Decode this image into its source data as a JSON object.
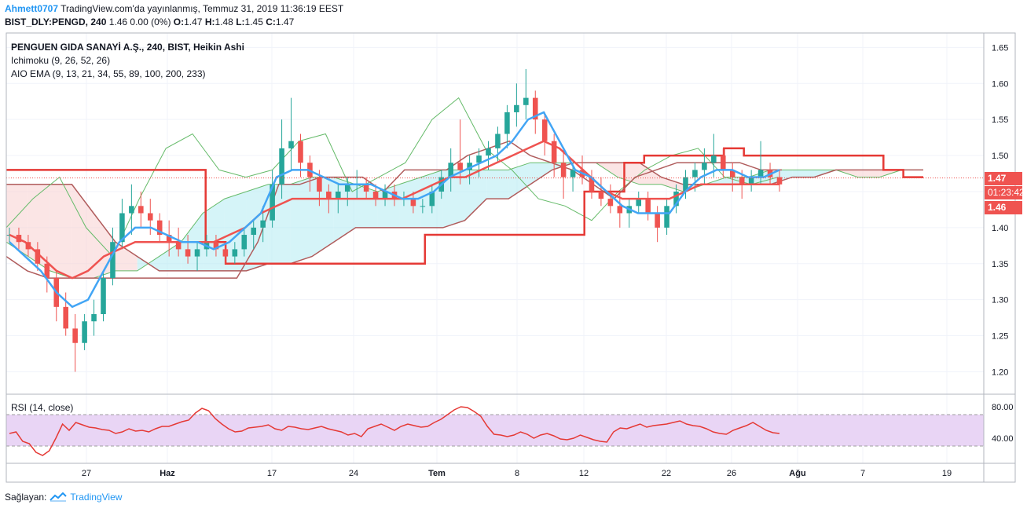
{
  "header": {
    "user": "Ahmett0707",
    "published": "TradingView.com'da yayınlanmış, Temmuz 31, 2019 11:36:19 EEST",
    "symbol": "BIST_DLY:PENGD, 240",
    "change": "1.46 0.00 (0%)",
    "o_label": "O:",
    "o_value": "1.47",
    "h_label": "H:",
    "h_value": "1.48",
    "l_label": "L:",
    "l_value": "1.45",
    "c_label": "C:",
    "c_value": "1.47"
  },
  "legend": {
    "title": "PENGUEN GIDA SANAYİ A.Ş., 240, BIST, Heikin Ashi",
    "ichimoku": "Ichimoku (9, 26, 52, 26)",
    "ema": "AIO EMA (9, 13, 21, 34, 55, 89, 100, 200, 233)",
    "rsi": "RSI (14, close)"
  },
  "price_tags": {
    "last": "1.47",
    "countdown": "01:23:42",
    "close": "1.46"
  },
  "footer": {
    "prefix": "Sağlayan:",
    "brand": "TradingView"
  },
  "colors": {
    "up": "#26a69a",
    "down": "#ef5350",
    "ema_fast": "#42a5f5",
    "ema_slow": "#ef5350",
    "kijun": "#e53935",
    "cloud_bull": "#b2ebf2",
    "cloud_bear": "#f8cfcf",
    "rsi_line": "#e53935",
    "rsi_band": "#e9d5f5",
    "grid": "#f0f3fa"
  },
  "chart_data": {
    "type": "candlestick",
    "ylim": [
      1.17,
      1.67
    ],
    "yticks": [
      1.2,
      1.25,
      1.3,
      1.35,
      1.4,
      1.45,
      1.5,
      1.55,
      1.6,
      1.65
    ],
    "ytick_labels": [
      "1.20",
      "1.25",
      "1.30",
      "1.35",
      "1.40",
      "1.45",
      "1.50",
      "1.55",
      "1.60",
      "1.65"
    ],
    "xticks": [
      "27",
      "Haz",
      "17",
      "24",
      "Tem",
      "8",
      "12",
      "22",
      "26",
      "Ağu",
      "7",
      "19"
    ],
    "rsi": {
      "ylim": [
        10,
        95
      ],
      "yticks": [
        40,
        80
      ],
      "ytick_labels": [
        "40.00",
        "80.00"
      ],
      "band": [
        30,
        70
      ],
      "values": [
        46,
        48,
        36,
        33,
        22,
        18,
        24,
        40,
        58,
        50,
        60,
        57,
        54,
        53,
        51,
        50,
        46,
        48,
        52,
        49,
        50,
        48,
        52,
        55,
        55,
        58,
        61,
        63,
        72,
        78,
        75,
        65,
        58,
        52,
        48,
        49,
        53,
        54,
        55,
        57,
        52,
        50,
        55,
        54,
        52,
        51,
        53,
        55,
        52,
        50,
        48,
        44,
        46,
        42,
        52,
        55,
        58,
        54,
        50,
        55,
        58,
        56,
        54,
        55,
        60,
        64,
        70,
        76,
        80,
        79,
        74,
        68,
        55,
        45,
        44,
        42,
        44,
        48,
        45,
        40,
        44,
        46,
        43,
        39,
        38,
        40,
        44,
        41,
        38,
        36,
        35,
        48,
        53,
        52,
        55,
        58,
        54,
        56,
        57,
        58,
        60,
        62,
        58,
        56,
        55,
        52,
        48,
        46,
        45,
        50,
        53,
        56,
        60,
        55,
        50,
        47,
        46
      ]
    },
    "candles": [
      [
        1.39,
        1.4,
        1.38,
        1.39
      ],
      [
        1.39,
        1.4,
        1.37,
        1.38
      ],
      [
        1.38,
        1.39,
        1.36,
        1.37
      ],
      [
        1.37,
        1.38,
        1.34,
        1.35
      ],
      [
        1.35,
        1.36,
        1.31,
        1.33
      ],
      [
        1.33,
        1.34,
        1.27,
        1.29
      ],
      [
        1.29,
        1.31,
        1.25,
        1.26
      ],
      [
        1.26,
        1.28,
        1.2,
        1.24
      ],
      [
        1.24,
        1.28,
        1.23,
        1.27
      ],
      [
        1.27,
        1.3,
        1.25,
        1.28
      ],
      [
        1.28,
        1.34,
        1.27,
        1.33
      ],
      [
        1.33,
        1.4,
        1.32,
        1.38
      ],
      [
        1.38,
        1.44,
        1.37,
        1.42
      ],
      [
        1.42,
        1.46,
        1.39,
        1.43
      ],
      [
        1.43,
        1.45,
        1.4,
        1.42
      ],
      [
        1.42,
        1.44,
        1.39,
        1.41
      ],
      [
        1.41,
        1.42,
        1.38,
        1.39
      ],
      [
        1.39,
        1.41,
        1.36,
        1.38
      ],
      [
        1.38,
        1.4,
        1.36,
        1.37
      ],
      [
        1.37,
        1.39,
        1.35,
        1.36
      ],
      [
        1.36,
        1.38,
        1.34,
        1.37
      ],
      [
        1.37,
        1.39,
        1.36,
        1.38
      ],
      [
        1.38,
        1.39,
        1.36,
        1.37
      ],
      [
        1.37,
        1.38,
        1.35,
        1.36
      ],
      [
        1.36,
        1.38,
        1.35,
        1.37
      ],
      [
        1.37,
        1.4,
        1.36,
        1.39
      ],
      [
        1.39,
        1.41,
        1.37,
        1.4
      ],
      [
        1.4,
        1.43,
        1.38,
        1.41
      ],
      [
        1.41,
        1.48,
        1.4,
        1.46
      ],
      [
        1.46,
        1.55,
        1.44,
        1.51
      ],
      [
        1.51,
        1.58,
        1.48,
        1.52
      ],
      [
        1.52,
        1.53,
        1.47,
        1.49
      ],
      [
        1.49,
        1.5,
        1.45,
        1.47
      ],
      [
        1.47,
        1.48,
        1.43,
        1.45
      ],
      [
        1.45,
        1.46,
        1.42,
        1.44
      ],
      [
        1.44,
        1.46,
        1.42,
        1.45
      ],
      [
        1.45,
        1.47,
        1.43,
        1.46
      ],
      [
        1.46,
        1.48,
        1.44,
        1.46
      ],
      [
        1.46,
        1.47,
        1.44,
        1.45
      ],
      [
        1.45,
        1.46,
        1.43,
        1.44
      ],
      [
        1.44,
        1.46,
        1.43,
        1.45
      ],
      [
        1.45,
        1.46,
        1.43,
        1.44
      ],
      [
        1.44,
        1.45,
        1.43,
        1.44
      ],
      [
        1.44,
        1.45,
        1.42,
        1.43
      ],
      [
        1.43,
        1.44,
        1.42,
        1.43
      ],
      [
        1.43,
        1.46,
        1.42,
        1.45
      ],
      [
        1.45,
        1.48,
        1.44,
        1.47
      ],
      [
        1.47,
        1.51,
        1.45,
        1.49
      ],
      [
        1.49,
        1.55,
        1.46,
        1.48
      ],
      [
        1.48,
        1.5,
        1.46,
        1.49
      ],
      [
        1.49,
        1.51,
        1.47,
        1.5
      ],
      [
        1.5,
        1.52,
        1.48,
        1.51
      ],
      [
        1.51,
        1.54,
        1.49,
        1.53
      ],
      [
        1.53,
        1.57,
        1.51,
        1.56
      ],
      [
        1.56,
        1.6,
        1.54,
        1.57
      ],
      [
        1.57,
        1.62,
        1.55,
        1.58
      ],
      [
        1.58,
        1.59,
        1.53,
        1.55
      ],
      [
        1.55,
        1.56,
        1.5,
        1.52
      ],
      [
        1.52,
        1.53,
        1.47,
        1.49
      ],
      [
        1.49,
        1.51,
        1.44,
        1.47
      ],
      [
        1.47,
        1.49,
        1.45,
        1.48
      ],
      [
        1.48,
        1.5,
        1.46,
        1.47
      ],
      [
        1.47,
        1.48,
        1.44,
        1.45
      ],
      [
        1.45,
        1.47,
        1.43,
        1.44
      ],
      [
        1.44,
        1.46,
        1.42,
        1.43
      ],
      [
        1.43,
        1.45,
        1.4,
        1.42
      ],
      [
        1.42,
        1.44,
        1.4,
        1.43
      ],
      [
        1.43,
        1.45,
        1.42,
        1.44
      ],
      [
        1.44,
        1.45,
        1.41,
        1.42
      ],
      [
        1.42,
        1.43,
        1.38,
        1.4
      ],
      [
        1.4,
        1.44,
        1.39,
        1.43
      ],
      [
        1.43,
        1.46,
        1.42,
        1.45
      ],
      [
        1.45,
        1.48,
        1.44,
        1.47
      ],
      [
        1.47,
        1.49,
        1.45,
        1.48
      ],
      [
        1.48,
        1.51,
        1.46,
        1.49
      ],
      [
        1.49,
        1.53,
        1.47,
        1.5
      ],
      [
        1.5,
        1.51,
        1.47,
        1.48
      ],
      [
        1.48,
        1.49,
        1.45,
        1.47
      ],
      [
        1.47,
        1.48,
        1.44,
        1.46
      ],
      [
        1.46,
        1.48,
        1.45,
        1.47
      ],
      [
        1.47,
        1.52,
        1.46,
        1.48
      ],
      [
        1.48,
        1.49,
        1.46,
        1.47
      ],
      [
        1.47,
        1.48,
        1.45,
        1.46
      ]
    ],
    "ema_fast": [
      1.38,
      1.36,
      1.34,
      1.31,
      1.29,
      1.3,
      1.34,
      1.38,
      1.4,
      1.4,
      1.39,
      1.38,
      1.38,
      1.37,
      1.38,
      1.4,
      1.42,
      1.47,
      1.48,
      1.48,
      1.47,
      1.46,
      1.46,
      1.46,
      1.45,
      1.44,
      1.44,
      1.45,
      1.47,
      1.48,
      1.49,
      1.5,
      1.52,
      1.55,
      1.56,
      1.52,
      1.48,
      1.47,
      1.45,
      1.43,
      1.42,
      1.42,
      1.42,
      1.45,
      1.47,
      1.48,
      1.48,
      1.47,
      1.47,
      1.48
    ],
    "ema_slow": [
      1.39,
      1.38,
      1.36,
      1.34,
      1.33,
      1.34,
      1.36,
      1.37,
      1.38,
      1.38,
      1.38,
      1.38,
      1.38,
      1.38,
      1.39,
      1.4,
      1.42,
      1.43,
      1.44,
      1.44,
      1.44,
      1.44,
      1.44,
      1.44,
      1.44,
      1.44,
      1.45,
      1.46,
      1.47,
      1.47,
      1.48,
      1.49,
      1.5,
      1.51,
      1.52,
      1.51,
      1.49,
      1.47,
      1.45,
      1.44,
      1.44,
      1.44,
      1.44,
      1.45,
      1.46,
      1.46,
      1.46,
      1.46,
      1.46,
      1.46
    ],
    "kijun": [
      1.48,
      1.48,
      1.48,
      1.48,
      1.48,
      1.48,
      1.48,
      1.48,
      1.48,
      1.48,
      1.38,
      1.35,
      1.35,
      1.35,
      1.35,
      1.35,
      1.35,
      1.35,
      1.35,
      1.35,
      1.35,
      1.39,
      1.39,
      1.39,
      1.39,
      1.39,
      1.39,
      1.39,
      1.39,
      1.45,
      1.45,
      1.49,
      1.5,
      1.5,
      1.5,
      1.5,
      1.51,
      1.5,
      1.5,
      1.5,
      1.5,
      1.5,
      1.5,
      1.5,
      1.48,
      1.47,
      1.47
    ],
    "tenkan": [
      1.36,
      1.34,
      1.33,
      1.33,
      1.33,
      1.33,
      1.33,
      1.33,
      1.33,
      1.33,
      1.33,
      1.33,
      1.38,
      1.46,
      1.46,
      1.47,
      1.47,
      1.47,
      1.45,
      1.48,
      1.48,
      1.48,
      1.5,
      1.51,
      1.52,
      1.5,
      1.49,
      1.48,
      1.46,
      1.44,
      1.47,
      1.48,
      1.49,
      1.49,
      1.49,
      1.49,
      1.48,
      1.48
    ],
    "span_a": [
      1.38,
      1.36,
      1.34,
      1.33,
      1.33,
      1.34,
      1.34,
      1.36,
      1.38,
      1.42,
      1.44,
      1.45,
      1.46,
      1.46,
      1.47,
      1.47,
      1.46,
      1.45,
      1.46,
      1.47,
      1.48,
      1.48,
      1.48,
      1.48,
      1.49,
      1.49,
      1.49,
      1.49,
      1.47,
      1.46,
      1.46,
      1.45,
      1.46,
      1.47,
      1.47,
      1.48,
      1.48,
      1.48,
      1.48,
      1.47,
      1.47,
      1.48,
      1.48
    ],
    "span_b": [
      1.46,
      1.46,
      1.46,
      1.46,
      1.42,
      1.38,
      1.36,
      1.34,
      1.34,
      1.34,
      1.34,
      1.34,
      1.35,
      1.35,
      1.36,
      1.38,
      1.4,
      1.4,
      1.4,
      1.4,
      1.4,
      1.41,
      1.44,
      1.44,
      1.46,
      1.48,
      1.49,
      1.49,
      1.49,
      1.49,
      1.47,
      1.46,
      1.46,
      1.46,
      1.46,
      1.46,
      1.47,
      1.47,
      1.48,
      1.48,
      1.48,
      1.48,
      1.48
    ],
    "chikou": [
      1.4,
      1.44,
      1.47,
      1.4,
      1.36,
      1.44,
      1.51,
      1.53,
      1.48,
      1.47,
      1.48,
      1.52,
      1.53,
      1.45,
      1.47,
      1.49,
      1.55,
      1.58,
      1.51,
      1.48,
      1.44,
      1.43,
      1.41,
      1.45,
      1.48,
      1.5,
      1.51,
      1.47,
      1.46,
      1.47
    ]
  }
}
